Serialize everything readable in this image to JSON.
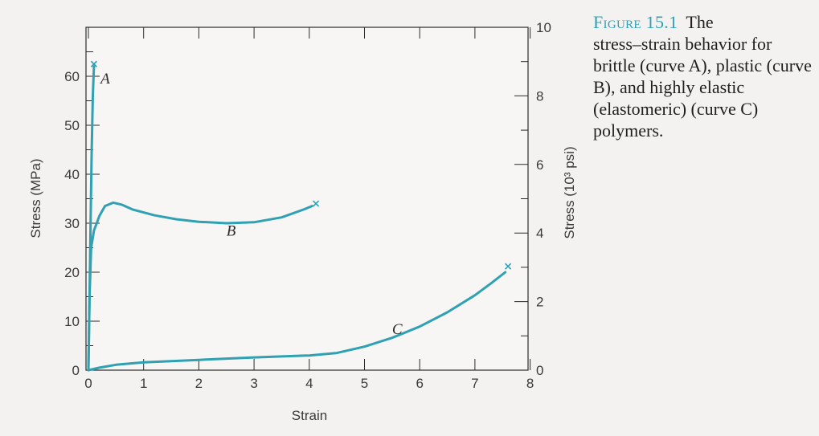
{
  "chart_data": {
    "type": "line",
    "caption_label": "Figure 15.1",
    "caption_title": "The",
    "caption_text": "stress–strain behavior for brittle (curve A), plastic (curve B), and highly elastic (elastomeric) (curve C) polymers.",
    "xlabel": "Strain",
    "ylabel": "Stress (MPa)",
    "y2label": "Stress (10³ psi)",
    "xlim": [
      0,
      8
    ],
    "ylim": [
      0,
      70
    ],
    "y2lim": [
      0,
      10
    ],
    "x_ticks": [
      "0",
      "1",
      "2",
      "3",
      "4",
      "5",
      "6",
      "7",
      "8"
    ],
    "y_ticks": [
      "0",
      "10",
      "20",
      "30",
      "40",
      "50",
      "60"
    ],
    "y2_ticks": [
      "0",
      "2",
      "4",
      "6",
      "8",
      "10"
    ],
    "grid": false,
    "line_color": "#2fa1b3",
    "series": [
      {
        "name": "A",
        "x": [
          0,
          0.02,
          0.04,
          0.06,
          0.08,
          0.1
        ],
        "y": [
          0,
          15,
          30,
          45,
          56,
          62
        ],
        "fracture": [
          0.1,
          62.5
        ],
        "label_pos": [
          0.22,
          58.5
        ]
      },
      {
        "name": "B",
        "x": [
          0,
          0.02,
          0.05,
          0.1,
          0.2,
          0.3,
          0.45,
          0.6,
          0.8,
          1.2,
          1.6,
          2.0,
          2.5,
          3.0,
          3.5,
          3.9,
          4.05
        ],
        "y": [
          0,
          15,
          25,
          28.5,
          31.5,
          33.5,
          34.2,
          33.8,
          32.8,
          31.6,
          30.8,
          30.3,
          30.0,
          30.2,
          31.2,
          32.8,
          33.5
        ],
        "fracture": [
          4.12,
          34
        ],
        "label_pos": [
          2.5,
          27.5
        ]
      },
      {
        "name": "C",
        "x": [
          0,
          0.2,
          0.5,
          1,
          2,
          3,
          4,
          4.5,
          5,
          5.5,
          6,
          6.5,
          7,
          7.3,
          7.55
        ],
        "y": [
          0,
          0.5,
          1.1,
          1.6,
          2.1,
          2.6,
          3.0,
          3.5,
          4.8,
          6.6,
          8.9,
          11.8,
          15.3,
          17.8,
          20
        ],
        "fracture": [
          7.6,
          21.2
        ],
        "label_pos": [
          5.5,
          7.4
        ]
      }
    ]
  }
}
